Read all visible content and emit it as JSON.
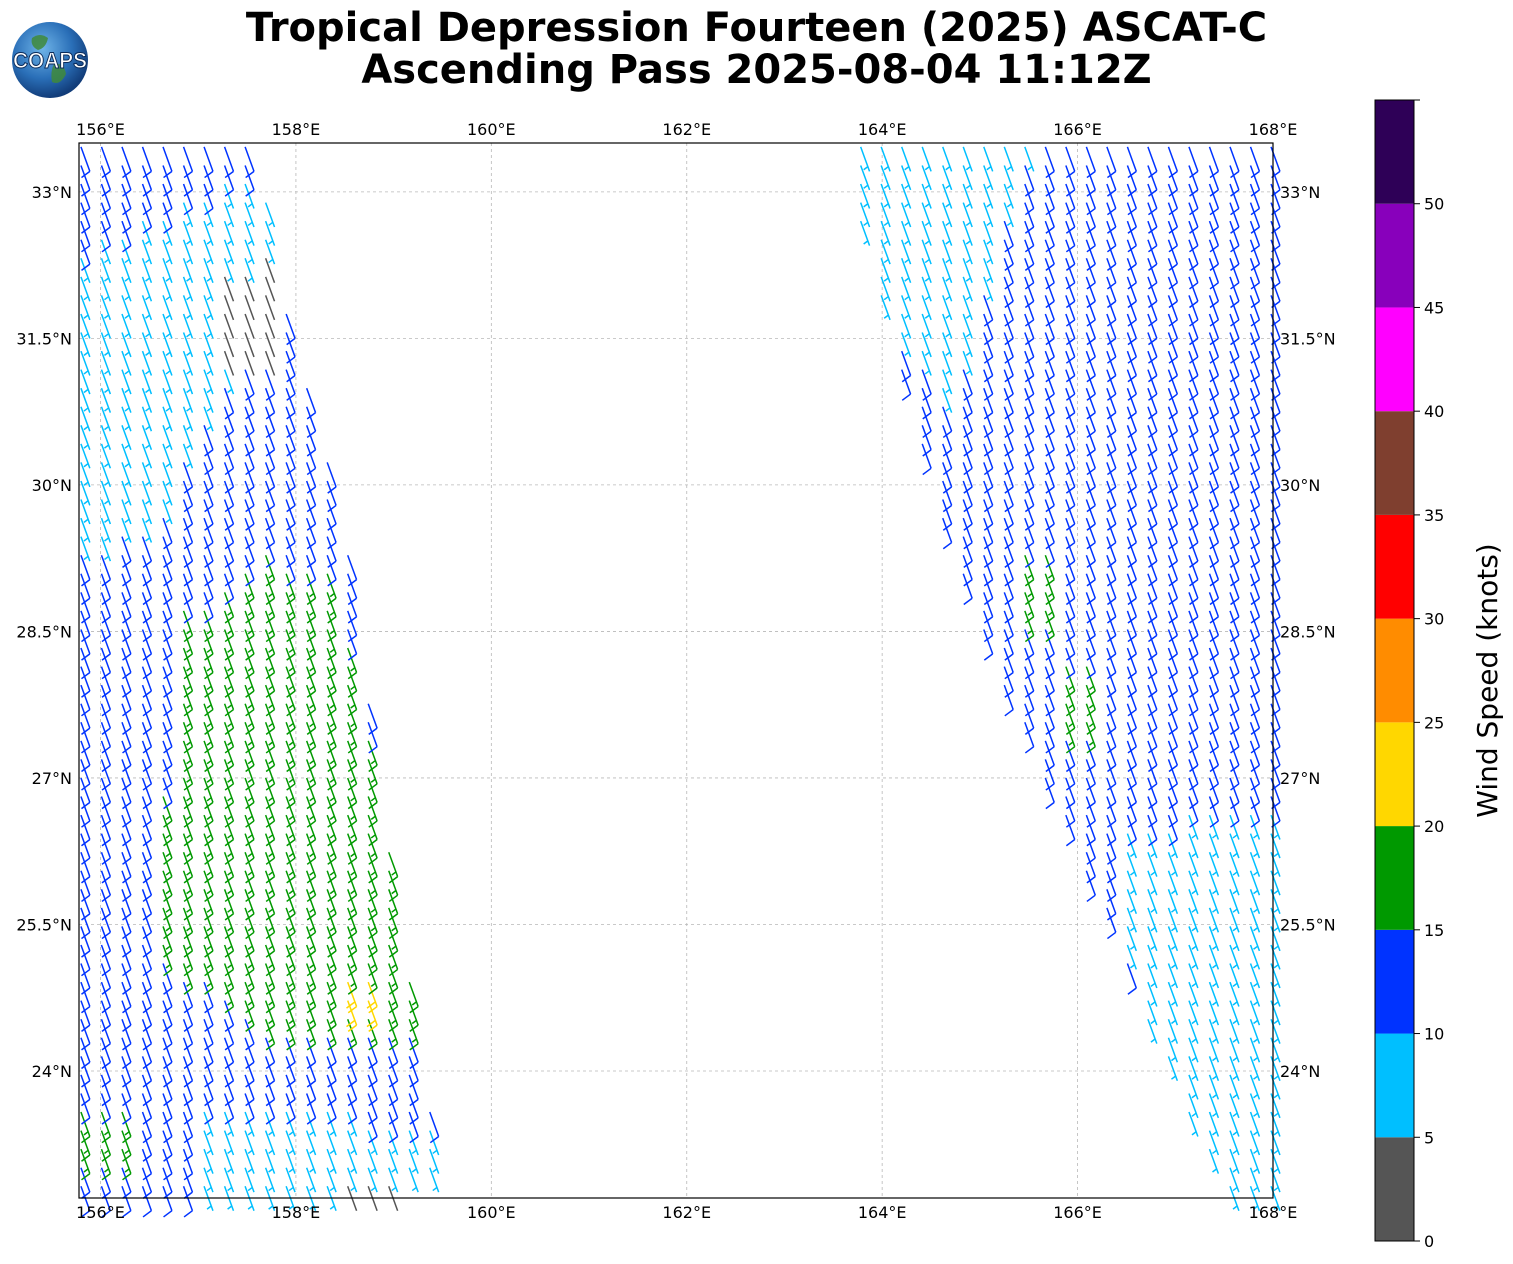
{
  "title": {
    "line1": "Tropical Depression Fourteen (2025) ASCAT-C",
    "line2": "Ascending Pass 2025-08-04 11:12Z"
  },
  "logo": {
    "text": "COAPS",
    "icon": "globe-logo-icon"
  },
  "chart_data": {
    "type": "wind-barb-map",
    "projection": "plate-carree",
    "lon_range": [
      155.78,
      168.0
    ],
    "lat_range": [
      22.7,
      33.5
    ],
    "lon_ticks": [
      {
        "value": 156,
        "label": "156°E"
      },
      {
        "value": 158,
        "label": "158°E"
      },
      {
        "value": 160,
        "label": "160°E"
      },
      {
        "value": 162,
        "label": "162°E"
      },
      {
        "value": 164,
        "label": "164°E"
      },
      {
        "value": 166,
        "label": "166°E"
      },
      {
        "value": 168,
        "label": "168°E"
      }
    ],
    "lat_ticks": [
      {
        "value": 33,
        "label": "33°N"
      },
      {
        "value": 31.5,
        "label": "31.5°N"
      },
      {
        "value": 30,
        "label": "30°N"
      },
      {
        "value": 28.5,
        "label": "28.5°N"
      },
      {
        "value": 27,
        "label": "27°N"
      },
      {
        "value": 25.5,
        "label": "25.5°N"
      },
      {
        "value": 24,
        "label": "24°N"
      }
    ],
    "grid": true,
    "colorbar": {
      "label": "Wind Speed (knots)",
      "bins": [
        {
          "min": 0,
          "max": 5,
          "color": "#555555"
        },
        {
          "min": 5,
          "max": 10,
          "color": "#00BFFF"
        },
        {
          "min": 10,
          "max": 15,
          "color": "#0033FF"
        },
        {
          "min": 15,
          "max": 20,
          "color": "#009900"
        },
        {
          "min": 20,
          "max": 25,
          "color": "#FFD700"
        },
        {
          "min": 25,
          "max": 30,
          "color": "#FF8C00"
        },
        {
          "min": 30,
          "max": 35,
          "color": "#FF0000"
        },
        {
          "min": 35,
          "max": 40,
          "color": "#7F3F2F"
        },
        {
          "min": 40,
          "max": 45,
          "color": "#FF00FF"
        },
        {
          "min": 45,
          "max": 50,
          "color": "#8800BB"
        },
        {
          "min": 50,
          "max": 55,
          "color": "#2E0057"
        }
      ],
      "tick_labels": [
        "0",
        "5",
        "10",
        "15",
        "20",
        "25",
        "30",
        "35",
        "40",
        "45",
        "50"
      ]
    },
    "swaths": [
      {
        "name": "west-swath",
        "polygon": [
          [
            155.78,
            33.5
          ],
          [
            157.6,
            33.5
          ],
          [
            157.8,
            32.3
          ],
          [
            158.0,
            31.5
          ],
          [
            158.5,
            29.6
          ],
          [
            159.0,
            26.0
          ],
          [
            159.5,
            22.9
          ],
          [
            158.4,
            22.7
          ],
          [
            155.78,
            22.7
          ]
        ],
        "dir_deg": 160,
        "regions": [
          {
            "kt": 8,
            "polygon": [
              [
                155.78,
                32.4
              ],
              [
                157.8,
                33.4
              ],
              [
                157.8,
                31.6
              ],
              [
                157.1,
                30.9
              ],
              [
                156.6,
                29.6
              ],
              [
                155.78,
                29.4
              ]
            ]
          },
          {
            "kt": 3,
            "polygon": [
              [
                157.1,
                32.1
              ],
              [
                157.9,
                32.5
              ],
              [
                157.9,
                31.3
              ],
              [
                157.1,
                31.3
              ]
            ]
          },
          {
            "kt": 12,
            "polygon": [
              [
                155.78,
                33.5
              ],
              [
                157.5,
                33.5
              ],
              [
                155.78,
                32.5
              ]
            ]
          },
          {
            "kt": 17,
            "polygon": [
              [
                156.8,
                28.7
              ],
              [
                157.7,
                29.3
              ],
              [
                158.4,
                29.2
              ],
              [
                159.3,
                24.4
              ],
              [
                157.8,
                24.4
              ],
              [
                156.5,
                25.3
              ]
            ]
          },
          {
            "kt": 22,
            "polygon": [
              [
                158.35,
                25.1
              ],
              [
                158.8,
                25.1
              ],
              [
                158.8,
                24.7
              ],
              [
                158.35,
                24.7
              ]
            ]
          },
          {
            "kt": 8,
            "polygon": [
              [
                157.0,
                23.6
              ],
              [
                158.6,
                23.6
              ],
              [
                159.6,
                23.4
              ],
              [
                159.6,
                22.7
              ],
              [
                157.0,
                22.7
              ]
            ]
          },
          {
            "kt": 3,
            "polygon": [
              [
                158.4,
                23.0
              ],
              [
                159.6,
                23.0
              ],
              [
                159.6,
                22.7
              ],
              [
                158.4,
                22.7
              ]
            ]
          },
          {
            "kt": 17,
            "polygon": [
              [
                155.78,
                23.7
              ],
              [
                156.3,
                23.7
              ],
              [
                156.3,
                23.1
              ],
              [
                155.78,
                23.1
              ]
            ]
          }
        ]
      },
      {
        "name": "east-swath",
        "polygon": [
          [
            163.6,
            33.5
          ],
          [
            168.0,
            33.5
          ],
          [
            168.0,
            22.7
          ],
          [
            167.5,
            22.7
          ],
          [
            164.8,
            29.0
          ],
          [
            163.6,
            33.2
          ]
        ],
        "dir_deg": 160,
        "regions": [
          {
            "kt": 8,
            "polygon": [
              [
                163.6,
                33.5
              ],
              [
                165.5,
                33.5
              ],
              [
                165.0,
                32.0
              ],
              [
                164.7,
                30.8
              ],
              [
                163.6,
                32.4
              ]
            ]
          },
          {
            "kt": 8,
            "polygon": [
              [
                166.5,
                26.5
              ],
              [
                168.0,
                26.8
              ],
              [
                168.0,
                22.7
              ],
              [
                167.3,
                22.7
              ],
              [
                166.5,
                25.2
              ]
            ]
          },
          {
            "kt": 17,
            "polygon": [
              [
                165.4,
                29.3
              ],
              [
                165.7,
                29.3
              ],
              [
                165.7,
                28.6
              ],
              [
                165.4,
                28.6
              ]
            ]
          },
          {
            "kt": 17,
            "polygon": [
              [
                165.7,
                28.3
              ],
              [
                166.3,
                28.3
              ],
              [
                166.3,
                27.4
              ],
              [
                165.7,
                27.4
              ]
            ]
          }
        ]
      }
    ]
  }
}
